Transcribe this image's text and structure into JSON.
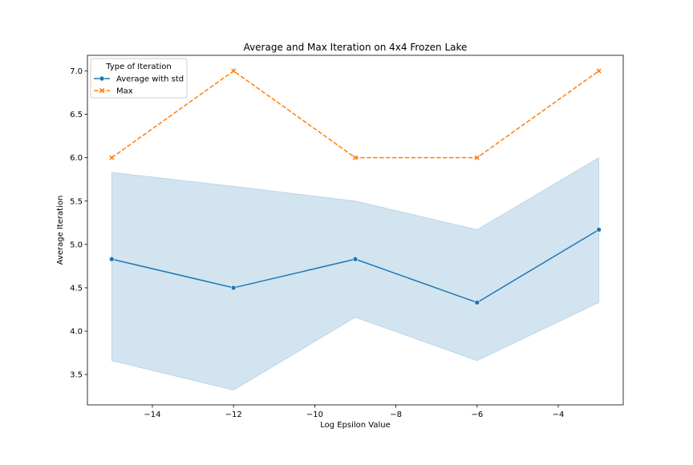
{
  "chart_data": {
    "type": "line",
    "title": "Average and Max Iteration on 4x4 Frozen Lake",
    "xlabel": "Log Epsilon Value",
    "ylabel": "Average Iteration",
    "xlim": [
      -15.6,
      -2.4
    ],
    "ylim": [
      3.15,
      7.18
    ],
    "xticks": [
      -14,
      -12,
      -10,
      -8,
      -6,
      -4
    ],
    "xtick_labels": [
      "−14",
      "−12",
      "−10",
      "−8",
      "−6",
      "−4"
    ],
    "yticks": [
      3.5,
      4.0,
      4.5,
      5.0,
      5.5,
      6.0,
      6.5,
      7.0
    ],
    "ytick_labels": [
      "3.5",
      "4.0",
      "4.5",
      "5.0",
      "5.5",
      "6.0",
      "6.5",
      "7.0"
    ],
    "grid": false,
    "legend": {
      "title": "Type of Iteration",
      "placement": "top-left"
    },
    "x": [
      -15,
      -12,
      -9,
      -6,
      -3
    ],
    "series": [
      {
        "name": "Average with std",
        "values": [
          4.83,
          4.5,
          4.83,
          4.33,
          5.17
        ],
        "band_lower": [
          3.66,
          3.32,
          4.16,
          3.66,
          4.33
        ],
        "band_upper": [
          5.83,
          5.67,
          5.5,
          5.17,
          6.0
        ],
        "color": "#1f77b4",
        "band_color": "#1f77b4",
        "marker": "circle",
        "linestyle": "solid"
      },
      {
        "name": "Max",
        "values": [
          6.0,
          7.0,
          6.0,
          6.0,
          7.0
        ],
        "color": "#ff7f0e",
        "marker": "x",
        "linestyle": "dashed"
      }
    ]
  }
}
